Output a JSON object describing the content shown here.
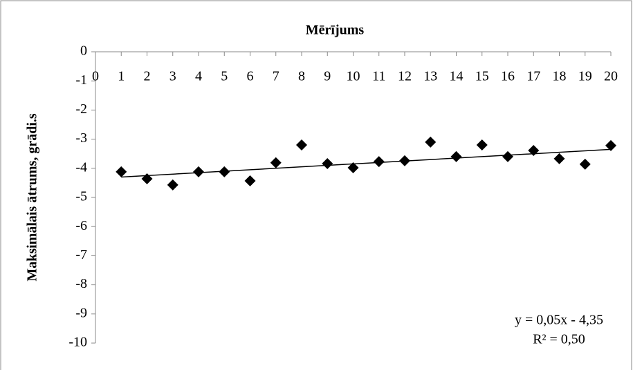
{
  "chart_data": {
    "type": "scatter",
    "title": "Mērījums",
    "y_label": "Maksimālais ātrums, grādi.s",
    "x": [
      1,
      2,
      3,
      4,
      5,
      6,
      7,
      8,
      9,
      10,
      11,
      12,
      13,
      14,
      15,
      16,
      17,
      18,
      19,
      20
    ],
    "series": [
      {
        "color": "#000000",
        "values": [
          -4.12,
          -4.36,
          -4.57,
          -4.12,
          -4.12,
          -4.43,
          -3.81,
          -3.2,
          -3.84,
          -3.98,
          -3.77,
          -3.74,
          -3.1,
          -3.6,
          -3.2,
          -3.6,
          -3.39,
          -3.67,
          -3.86,
          -3.22
        ]
      }
    ],
    "xlim": [
      0,
      20
    ],
    "xticks": [
      0,
      1,
      2,
      3,
      4,
      5,
      6,
      7,
      8,
      9,
      10,
      11,
      12,
      13,
      14,
      15,
      16,
      17,
      18,
      19,
      20
    ],
    "ylim": [
      -10,
      0
    ],
    "yticks": [
      0,
      -1,
      -2,
      -3,
      -4,
      -5,
      -6,
      -7,
      -8,
      -9,
      -10
    ],
    "trendline": {
      "slope": 0.05,
      "intercept": -4.35,
      "color": "#000000",
      "equation": "y = 0,05x - 4,35",
      "r_squared": "R² = 0,50"
    }
  }
}
